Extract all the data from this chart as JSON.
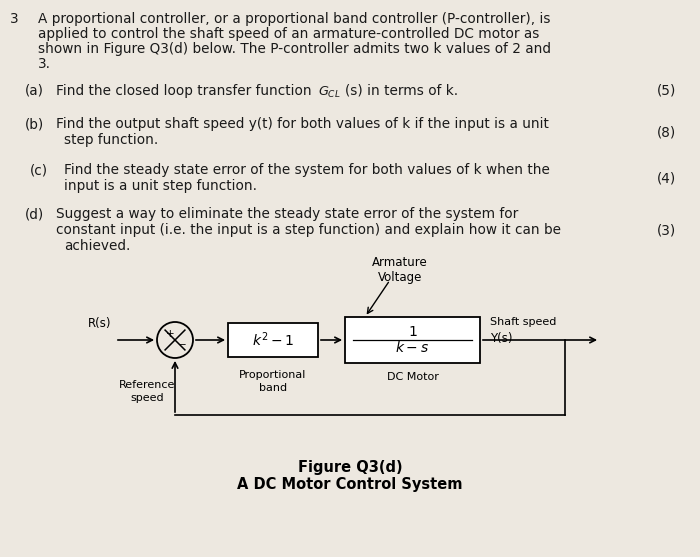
{
  "bg_color": "#ede8e0",
  "fig_width": 7.0,
  "fig_height": 5.57,
  "dpi": 100,
  "text_color": "#1a1a1a",
  "question_number": "3",
  "intro_line1": "A proportional controller, or a proportional band controller (P-controller), is",
  "intro_line2": "applied to control the shaft speed of an armature-controlled DC motor as",
  "intro_line3": "shown in Figure Q3(d) below. The P-controller admits two k values of 2 and",
  "intro_line4": "3.",
  "part_a_pre": "Find the closed loop transfer function ",
  "part_a_gcl": "$G_{CL}$",
  "part_a_post": "(s) in terms of k.",
  "part_a_mark": "(5)",
  "part_b_line1": "Find the output shaft speed y(t) for both values of k if the input is a unit",
  "part_b_line2": "step function.",
  "part_b_mark": "(8)",
  "part_c_line1": "Find the steady state error of the system for both values of k when the",
  "part_c_line2": "input is a unit step function.",
  "part_c_mark": "(4)",
  "part_d_line1": "Suggest a way to eliminate the steady state error of the system for",
  "part_d_line2": "constant input (i.e. the input is a step function) and explain how it can be",
  "part_d_line3": "achieved.",
  "part_d_mark": "(3)",
  "cap_line1": "Figure Q3(d)",
  "cap_line2": "A DC Motor Control System",
  "font_size_main": 9.8,
  "font_size_diagram": 8.5,
  "font_size_label": 8.0
}
